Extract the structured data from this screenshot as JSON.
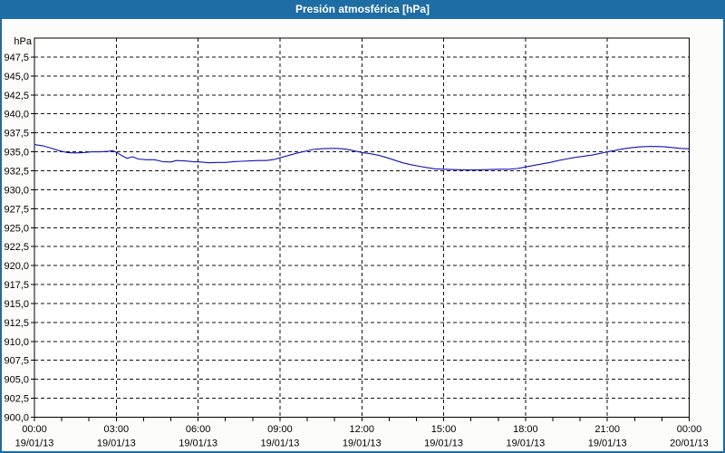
{
  "window": {
    "title": "Presión atmosférica [hPa]"
  },
  "colors": {
    "titlebar_bg": "#1e6da4",
    "titlebar_text": "#ffffff",
    "frame_border": "#1e6da4",
    "content_bg": "#fcfdfb",
    "plot_bg": "#ffffff",
    "axis": "#000000",
    "grid": "#111111",
    "tick_text": "#000005",
    "line": "#1111bb"
  },
  "chart_data": {
    "type": "line",
    "title": "Presión atmosférica [hPa]",
    "y_unit_label": "hPa",
    "ylim": [
      900,
      950
    ],
    "y_tick_step": 2.5,
    "grid": "dashed, horizontal every 2.5 hPa and vertical every 3 h",
    "legend": "none",
    "x_hours_range": [
      0,
      24
    ],
    "x_minor_tick_hours": 1,
    "y_ticks": [
      {
        "value": 947.5,
        "label": "947,5"
      },
      {
        "value": 945.0,
        "label": "945,0"
      },
      {
        "value": 942.5,
        "label": "942,5"
      },
      {
        "value": 940.0,
        "label": "940,0"
      },
      {
        "value": 937.5,
        "label": "937,5"
      },
      {
        "value": 935.0,
        "label": "935,0"
      },
      {
        "value": 932.5,
        "label": "932,5"
      },
      {
        "value": 930.0,
        "label": "930,0"
      },
      {
        "value": 927.5,
        "label": "927,5"
      },
      {
        "value": 925.0,
        "label": "925,0"
      },
      {
        "value": 922.5,
        "label": "922,5"
      },
      {
        "value": 920.0,
        "label": "920,0"
      },
      {
        "value": 917.5,
        "label": "917,5"
      },
      {
        "value": 915.0,
        "label": "915,0"
      },
      {
        "value": 912.5,
        "label": "912,5"
      },
      {
        "value": 910.0,
        "label": "910,0"
      },
      {
        "value": 907.5,
        "label": "907,5"
      },
      {
        "value": 905.0,
        "label": "905,0"
      },
      {
        "value": 902.5,
        "label": "902,5"
      },
      {
        "value": 900.0,
        "label": "900,0"
      }
    ],
    "x_ticks": [
      {
        "hour": 0,
        "time": "00:00",
        "date": "19/01/13"
      },
      {
        "hour": 3,
        "time": "03:00",
        "date": "19/01/13"
      },
      {
        "hour": 6,
        "time": "06:00",
        "date": "19/01/13"
      },
      {
        "hour": 9,
        "time": "09:00",
        "date": "19/01/13"
      },
      {
        "hour": 12,
        "time": "12:00",
        "date": "19/01/13"
      },
      {
        "hour": 15,
        "time": "15:00",
        "date": "19/01/13"
      },
      {
        "hour": 18,
        "time": "18:00",
        "date": "19/01/13"
      },
      {
        "hour": 21,
        "time": "21:00",
        "date": "19/01/13"
      },
      {
        "hour": 24,
        "time": "00:00",
        "date": "20/01/13"
      }
    ],
    "series": [
      {
        "name": "Presión atmosférica [hPa]",
        "color": "#1111bb",
        "points": [
          [
            0,
            935.95
          ],
          [
            0.3,
            935.8
          ],
          [
            0.6,
            935.5
          ],
          [
            0.9,
            935.15
          ],
          [
            1.2,
            934.9
          ],
          [
            1.5,
            934.85
          ],
          [
            1.8,
            934.9
          ],
          [
            2.1,
            935.0
          ],
          [
            2.4,
            935.0
          ],
          [
            2.7,
            935.05
          ],
          [
            2.85,
            935.15
          ],
          [
            3.0,
            934.95
          ],
          [
            3.2,
            934.5
          ],
          [
            3.4,
            934.15
          ],
          [
            3.6,
            934.35
          ],
          [
            3.8,
            934.05
          ],
          [
            4.1,
            933.95
          ],
          [
            4.4,
            933.95
          ],
          [
            4.7,
            933.7
          ],
          [
            5.0,
            933.65
          ],
          [
            5.2,
            933.85
          ],
          [
            5.5,
            933.8
          ],
          [
            5.8,
            933.7
          ],
          [
            6.1,
            933.65
          ],
          [
            6.4,
            933.55
          ],
          [
            6.7,
            933.6
          ],
          [
            7.0,
            933.6
          ],
          [
            7.3,
            933.7
          ],
          [
            7.6,
            933.75
          ],
          [
            7.9,
            933.8
          ],
          [
            8.2,
            933.85
          ],
          [
            8.5,
            933.85
          ],
          [
            8.8,
            934.0
          ],
          [
            9.0,
            934.2
          ],
          [
            9.3,
            934.5
          ],
          [
            9.6,
            934.8
          ],
          [
            9.9,
            935.05
          ],
          [
            10.2,
            935.3
          ],
          [
            10.5,
            935.4
          ],
          [
            10.8,
            935.45
          ],
          [
            11.1,
            935.45
          ],
          [
            11.4,
            935.35
          ],
          [
            11.7,
            935.15
          ],
          [
            12.0,
            934.9
          ],
          [
            12.3,
            934.75
          ],
          [
            12.6,
            934.55
          ],
          [
            12.9,
            934.25
          ],
          [
            13.2,
            933.9
          ],
          [
            13.5,
            933.55
          ],
          [
            13.8,
            933.3
          ],
          [
            14.1,
            933.1
          ],
          [
            14.4,
            932.9
          ],
          [
            14.7,
            932.75
          ],
          [
            15.0,
            932.7
          ],
          [
            15.4,
            932.65
          ],
          [
            15.8,
            932.6
          ],
          [
            16.2,
            932.6
          ],
          [
            16.6,
            932.65
          ],
          [
            17.0,
            932.7
          ],
          [
            17.4,
            932.7
          ],
          [
            17.7,
            932.8
          ],
          [
            18.0,
            933.0
          ],
          [
            18.3,
            933.2
          ],
          [
            18.6,
            933.4
          ],
          [
            18.9,
            933.6
          ],
          [
            19.2,
            933.85
          ],
          [
            19.5,
            934.05
          ],
          [
            19.8,
            934.25
          ],
          [
            20.1,
            934.4
          ],
          [
            20.4,
            934.55
          ],
          [
            20.7,
            934.75
          ],
          [
            21.0,
            935.0
          ],
          [
            21.3,
            935.2
          ],
          [
            21.6,
            935.4
          ],
          [
            21.9,
            935.55
          ],
          [
            22.2,
            935.65
          ],
          [
            22.5,
            935.7
          ],
          [
            22.8,
            935.7
          ],
          [
            23.1,
            935.65
          ],
          [
            23.4,
            935.55
          ],
          [
            23.7,
            935.45
          ],
          [
            24,
            935.4
          ]
        ]
      }
    ]
  }
}
